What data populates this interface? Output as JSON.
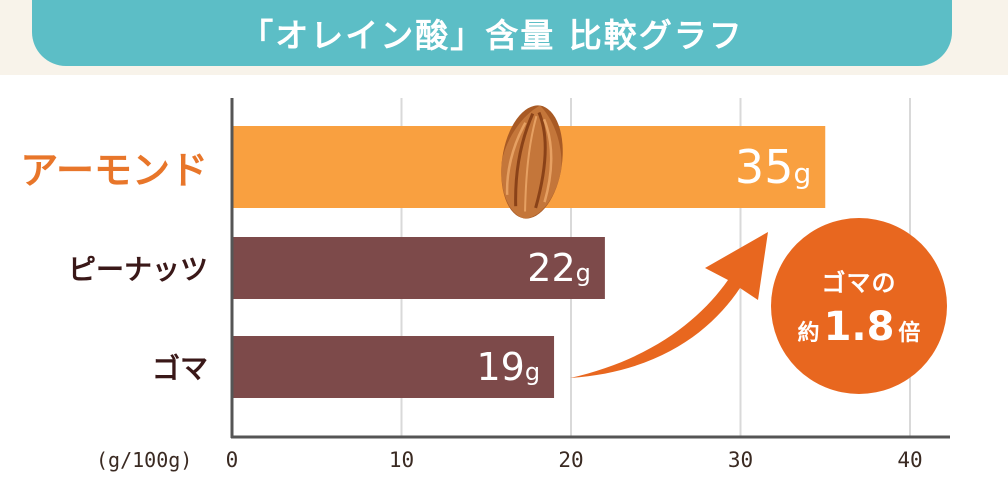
{
  "title": "「オレイン酸」含量 比較グラフ",
  "chart_data": {
    "type": "bar",
    "orientation": "horizontal",
    "title": "「オレイン酸」含量 比較グラフ",
    "categories": [
      "アーモンド",
      "ピーナッツ",
      "ゴマ"
    ],
    "values": [
      35,
      22,
      19
    ],
    "value_labels": [
      {
        "num": "35",
        "unit": "g"
      },
      {
        "num": "22",
        "unit": "g"
      },
      {
        "num": "19",
        "unit": "g"
      }
    ],
    "xlabel": "(g/100g)",
    "xlim": [
      0,
      40
    ],
    "ticks": [
      "0",
      "10",
      "20",
      "30",
      "40"
    ],
    "grid": true,
    "colors": {
      "highlight": "#f9a040",
      "highlight_label": "#e8762a",
      "normal": "#7d4a4a",
      "normal_label": "#3a1818",
      "axis": "#555555",
      "grid": "#d9d9d9"
    }
  },
  "callout": {
    "line1": "ゴマの",
    "prefix": "約",
    "ratio": "1.8",
    "suffix": "倍",
    "color": "#e8671f"
  }
}
